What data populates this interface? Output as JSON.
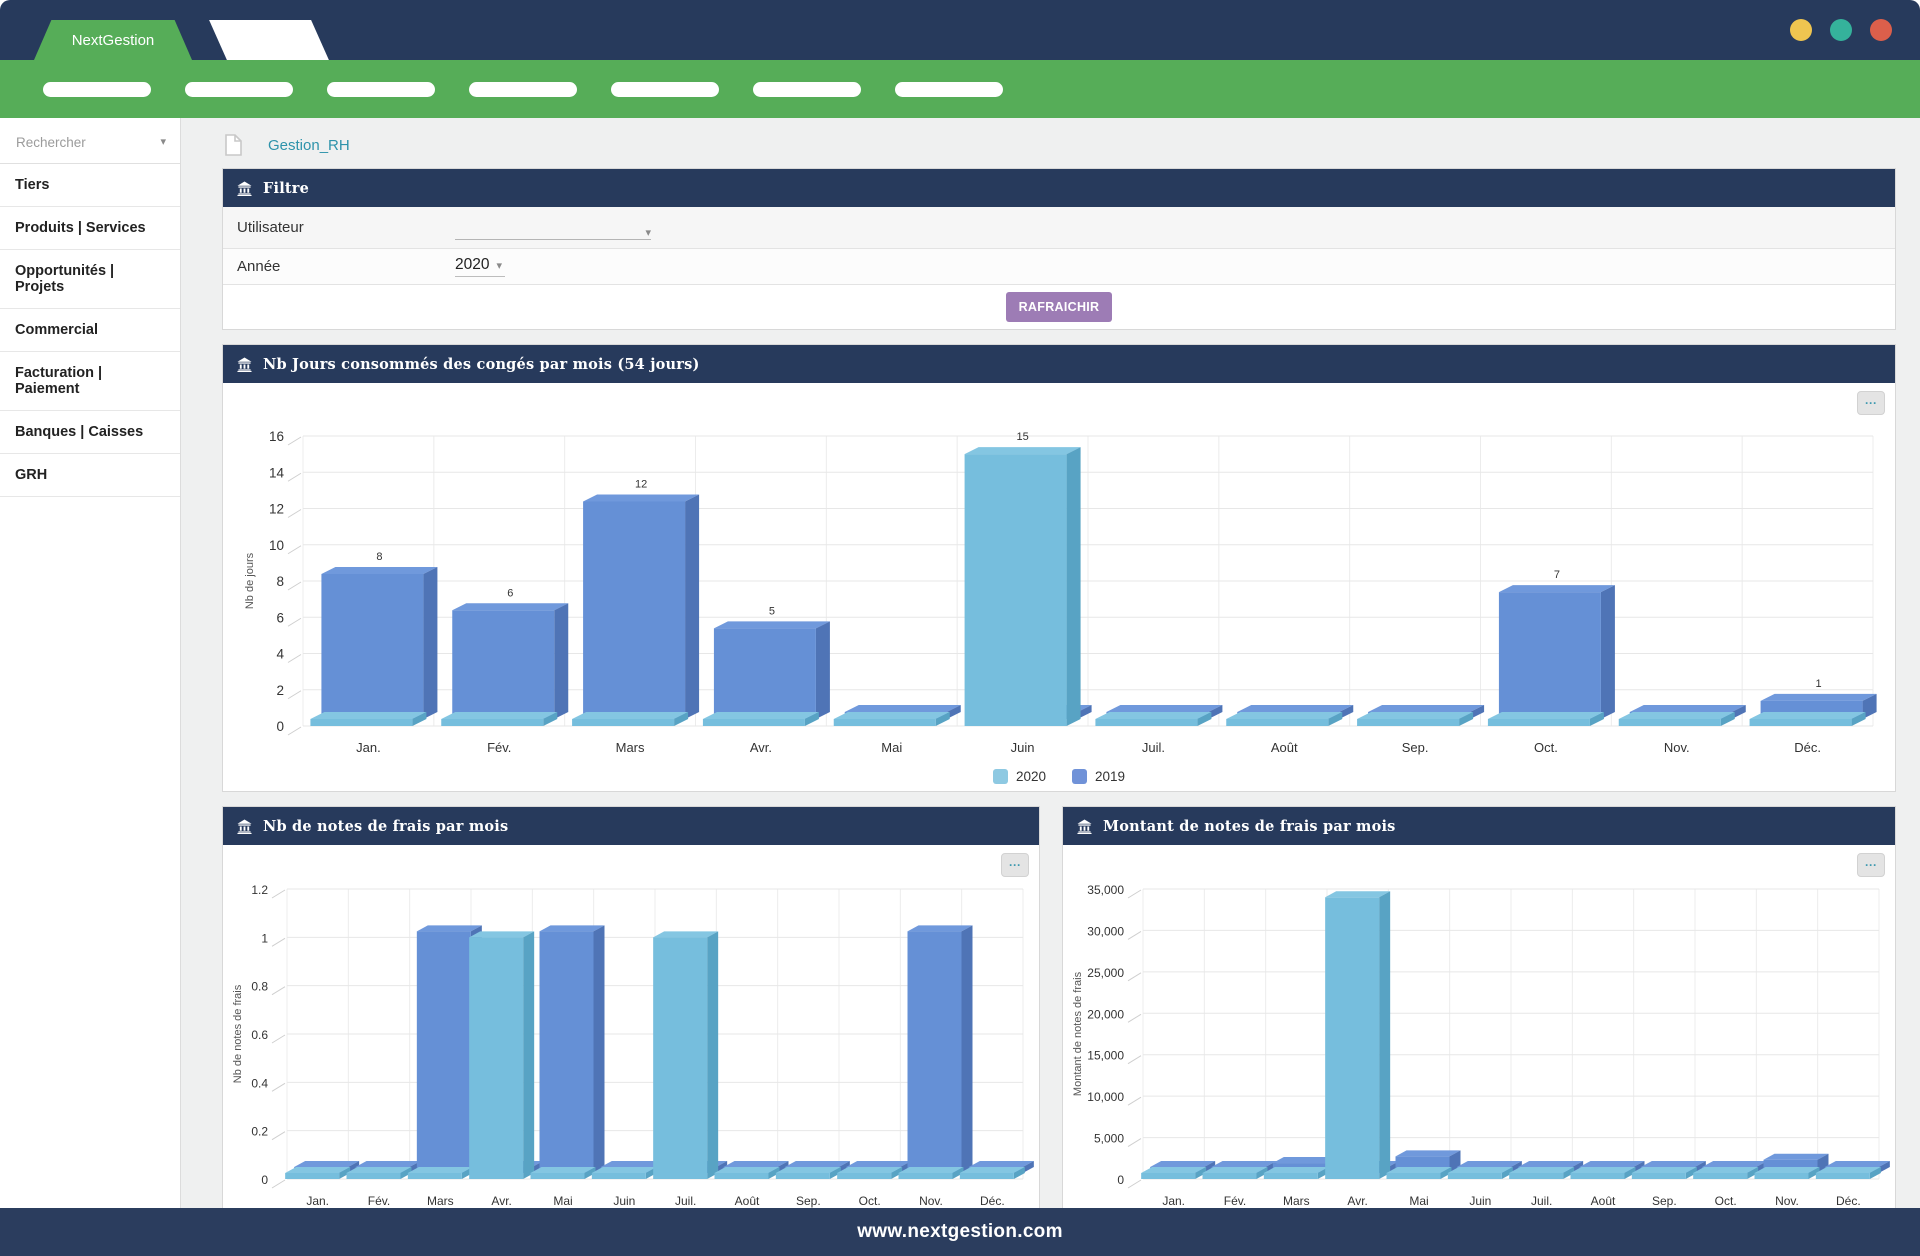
{
  "window": {
    "controls": [
      {
        "name": "yellow",
        "color": "#efc550"
      },
      {
        "name": "teal",
        "color": "#35b29b"
      },
      {
        "name": "red",
        "color": "#dc5f4b"
      }
    ]
  },
  "brand": {
    "name": "NextGestion"
  },
  "nav": {
    "pill_count": 7
  },
  "sidebar": {
    "search_placeholder": "Rechercher",
    "items": [
      "Tiers",
      "Produits | Services",
      "Opportunités | Projets",
      "Commercial",
      "Facturation | Paiement",
      "Banques | Caisses",
      "GRH"
    ]
  },
  "breadcrumb": {
    "title": "Gestion_RH"
  },
  "filter": {
    "title": "Filtre",
    "user_label": "Utilisateur",
    "user_value": "",
    "year_label": "Année",
    "year_value": "2020",
    "refresh_label": "RAFRAICHIR"
  },
  "icons": {
    "context_menu": "···",
    "caret": "▾",
    "bank": "bank-building",
    "file": "document-page"
  },
  "footer": {
    "text": "www.nextgestion.com"
  },
  "colors": {
    "navy": "#273a5c",
    "green": "#56ad58",
    "link_teal": "#2e93ab",
    "refresh_button": "#9d7cb5",
    "series_2020": "#76bedd",
    "series_2019": "#6590d6"
  },
  "chart_data": [
    {
      "type": "bar",
      "title": "Nb Jours consommés des congés par mois (54 jours)",
      "xlabel": "",
      "ylabel": "Nb de jours",
      "categories": [
        "Jan.",
        "Fév.",
        "Mars",
        "Avr.",
        "Mai",
        "Juin",
        "Juil.",
        "Août",
        "Sep.",
        "Oct.",
        "Nov.",
        "Déc."
      ],
      "series": [
        {
          "name": "2020",
          "values": [
            0,
            0,
            0,
            0,
            0,
            15,
            0,
            0,
            0,
            0,
            0,
            0
          ],
          "colors": {
            "front": "#76bedd",
            "side": "#58a3c4",
            "top": "#84c6e2",
            "legend": "#8ec9e2"
          }
        },
        {
          "name": "2019",
          "values": [
            8,
            6,
            12,
            5,
            0,
            0,
            0,
            0,
            0,
            7,
            0,
            1
          ],
          "colors": {
            "front": "#6590d6",
            "side": "#4f74b6",
            "top": "#7099dc",
            "legend": "#7092d8"
          }
        }
      ],
      "value_labels": [
        8,
        6,
        12,
        5,
        null,
        15,
        null,
        null,
        null,
        7,
        null,
        1
      ],
      "ylim": [
        0,
        16
      ],
      "ytick_values": [
        0,
        2,
        4,
        6,
        8,
        10,
        12,
        14,
        16
      ],
      "ytick_labels": [
        "0",
        "2",
        "4",
        "6",
        "8",
        "10",
        "12",
        "14",
        "16"
      ],
      "grid": true,
      "legend": {
        "visible": true,
        "position": "bottom",
        "entries": [
          "2020",
          "2019"
        ]
      }
    },
    {
      "type": "bar",
      "title": "Nb de notes de frais par mois",
      "xlabel": "",
      "ylabel": "Nb de notes de frais",
      "categories": [
        "Jan.",
        "Fév.",
        "Mars",
        "Avr.",
        "Mai",
        "Juin",
        "Juil.",
        "Août",
        "Sep.",
        "Oct.",
        "Nov.",
        "Déc."
      ],
      "series": [
        {
          "name": "2020",
          "values": [
            0,
            0,
            0,
            1,
            0,
            0,
            1,
            0,
            0,
            0,
            0,
            0
          ],
          "colors": {
            "front": "#76bedd",
            "side": "#58a3c4",
            "top": "#84c6e2",
            "legend": "#8ec9e2"
          }
        },
        {
          "name": "2019",
          "values": [
            0,
            0,
            1,
            0,
            1,
            0,
            0,
            0,
            0,
            0,
            1,
            0
          ],
          "colors": {
            "front": "#6590d6",
            "side": "#4f74b6",
            "top": "#7099dc",
            "legend": "#7092d8"
          }
        }
      ],
      "value_labels": null,
      "ylim": [
        0,
        1.2
      ],
      "ytick_values": [
        0,
        0.2,
        0.4,
        0.6,
        0.8,
        1,
        1.2
      ],
      "ytick_labels": [
        "0",
        "0.2",
        "0.4",
        "0.6",
        "0.8",
        "1",
        "1.2"
      ],
      "grid": true,
      "legend": {
        "visible": false
      }
    },
    {
      "type": "bar",
      "title": "Montant de notes de frais par mois",
      "xlabel": "",
      "ylabel": "Montant de notes de frais",
      "categories": [
        "Jan.",
        "Fév.",
        "Mars",
        "Avr.",
        "Mai",
        "Juin",
        "Juil.",
        "Août",
        "Sep.",
        "Oct.",
        "Nov.",
        "Déc."
      ],
      "series": [
        {
          "name": "2020",
          "values": [
            0,
            0,
            0,
            34000,
            0,
            0,
            0,
            0,
            0,
            0,
            0,
            0
          ],
          "colors": {
            "front": "#76bedd",
            "side": "#58a3c4",
            "top": "#84c6e2",
            "legend": "#8ec9e2"
          }
        },
        {
          "name": "2019",
          "values": [
            0,
            0,
            1200,
            0,
            2000,
            0,
            0,
            0,
            0,
            0,
            1600,
            0
          ],
          "colors": {
            "front": "#6590d6",
            "side": "#4f74b6",
            "top": "#7099dc",
            "legend": "#7092d8"
          }
        }
      ],
      "value_labels": null,
      "ylim": [
        0,
        35000
      ],
      "ytick_values": [
        0,
        5000,
        10000,
        15000,
        20000,
        25000,
        30000,
        35000
      ],
      "ytick_labels": [
        "0",
        "5,000",
        "10,000",
        "15,000",
        "20,000",
        "25,000",
        "30,000",
        "35,000"
      ],
      "grid": true,
      "legend": {
        "visible": false
      }
    }
  ]
}
